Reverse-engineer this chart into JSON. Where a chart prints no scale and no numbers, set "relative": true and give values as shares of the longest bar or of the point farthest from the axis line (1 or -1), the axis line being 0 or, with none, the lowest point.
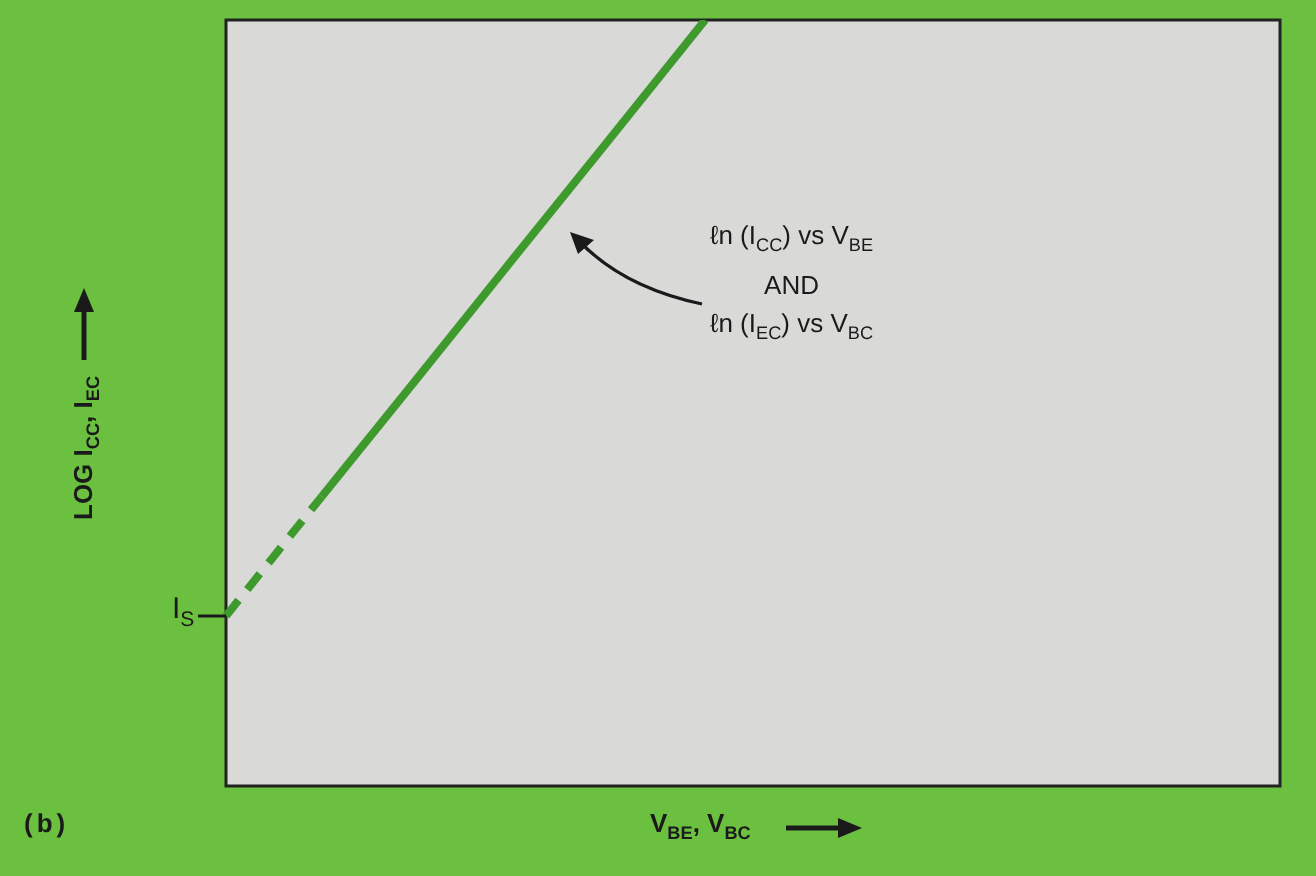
{
  "chart_data": {
    "type": "line",
    "relative": true,
    "xlabel": "V$_{BE}$, V$_{BC}$",
    "ylabel": "LOG I$_{CC}$, I$_{EC}$",
    "categories": [
      null,
      null,
      null,
      null,
      null,
      null,
      null,
      null,
      null,
      null,
      null,
      null
    ],
    "series": [
      {
        "color": "#3f9a2e",
        "line_style": "dashed",
        "values": [
          0.222,
          0.378,
          null,
          null,
          null,
          null,
          null,
          null,
          null,
          null,
          null,
          null
        ]
      },
      {
        "color": "#3f9a2e",
        "line_style": "solid",
        "values": [
          null,
          0.378,
          0.533,
          0.689,
          0.844,
          1,
          null,
          null,
          null,
          null,
          null,
          null
        ]
      }
    ],
    "annotations": [
      "I$_{S}$",
      "ℓn (I$_{CC}$) vs V$_{BE}$\nAND\nℓn (I$_{EC}$) vs V$_{BC}$",
      "(b)"
    ],
    "legend": false,
    "marker": "none"
  }
}
